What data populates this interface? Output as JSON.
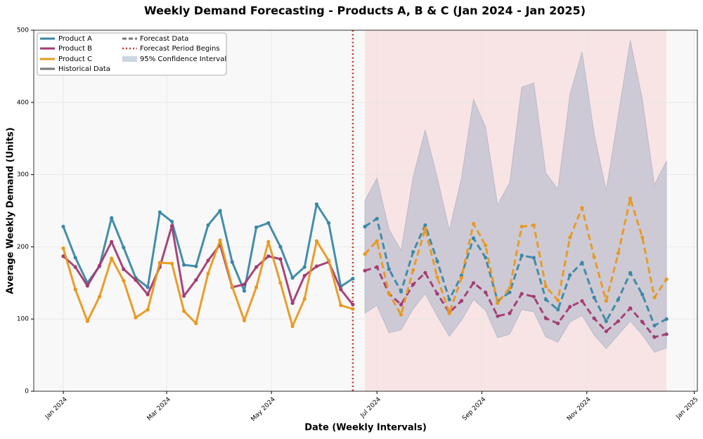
{
  "chart_data": {
    "type": "line",
    "title": "Weekly Demand Forecasting - Products A, B & C (Jan 2024 - Jan 2025)",
    "xlabel": "Date (Weekly Intervals)",
    "ylabel": "Average Weekly Demand (Units)",
    "x": [
      0,
      1,
      2,
      3,
      4,
      5,
      6,
      7,
      8,
      9,
      10,
      11,
      12,
      13,
      14,
      15,
      16,
      17,
      18,
      19,
      20,
      21,
      22,
      23,
      24,
      25,
      26,
      27,
      28,
      29,
      30,
      31,
      32,
      33,
      34,
      35,
      36,
      37,
      38,
      39,
      40,
      41,
      42,
      43,
      44,
      45,
      46,
      47,
      48,
      49,
      50
    ],
    "series": [
      {
        "name": "Product A",
        "color": "#3a87a5",
        "values": [
          228,
          185,
          150,
          173,
          240,
          199,
          157,
          144,
          248,
          235,
          175,
          173,
          230,
          250,
          179,
          139,
          227,
          233,
          200,
          157,
          172,
          259,
          233,
          145,
          156,
          228,
          239,
          169,
          138,
          193,
          230,
          180,
          127,
          160,
          212,
          185,
          125,
          137,
          188,
          185,
          127,
          113,
          161,
          178,
          130,
          97,
          127,
          164,
          134,
          91,
          100
        ]
      },
      {
        "name": "Product B",
        "color": "#a23b72",
        "values": [
          187,
          172,
          146,
          174,
          207,
          169,
          154,
          134,
          172,
          229,
          132,
          154,
          181,
          203,
          144,
          148,
          172,
          187,
          183,
          122,
          160,
          173,
          179,
          141,
          120,
          167,
          172,
          135,
          120,
          148,
          164,
          135,
          109,
          125,
          150,
          137,
          104,
          108,
          135,
          131,
          101,
          94,
          117,
          125,
          101,
          83,
          97,
          115,
          96,
          75,
          79
        ]
      },
      {
        "name": "Product C",
        "color": "#e8981d",
        "values": [
          198,
          141,
          97,
          131,
          184,
          153,
          102,
          113,
          178,
          177,
          111,
          94,
          163,
          209,
          145,
          98,
          144,
          207,
          150,
          90,
          128,
          208,
          181,
          119,
          114,
          190,
          208,
          135,
          106,
          168,
          225,
          158,
          108,
          157,
          232,
          202,
          122,
          143,
          228,
          230,
          145,
          126,
          213,
          254,
          186,
          125,
          191,
          267,
          213,
          130,
          155
        ]
      }
    ],
    "confidence_interval": {
      "name": "95% Confidence Interval",
      "color": "#8fa3bd",
      "lower": [
        108,
        119,
        81,
        85,
        114,
        135,
        104,
        76,
        98,
        127,
        112,
        74,
        79,
        113,
        110,
        75,
        68,
        96,
        105,
        78,
        59,
        78,
        97,
        78,
        54,
        60
      ],
      "upper": [
        264,
        295,
        224,
        195,
        297,
        362,
        296,
        223,
        295,
        404,
        366,
        258,
        289,
        421,
        427,
        302,
        280,
        411,
        470,
        357,
        278,
        382,
        486,
        404,
        286,
        319
      ]
    },
    "forecast_region": [
      25,
      50
    ],
    "forecast_start": {
      "x": 24,
      "label": "Forecast Period Begins",
      "color": "#c0392b"
    },
    "legend": {
      "loc": "upper left",
      "historical": "Historical Data",
      "forecast": "Forecast Data"
    },
    "xlim": [
      -2.45,
      52.56
    ],
    "xticks": [
      {
        "value": 0,
        "label": "Jan 2024"
      },
      {
        "value": 8.57,
        "label": "Mar 2024"
      },
      {
        "value": 17.25,
        "label": "May 2024"
      },
      {
        "value": 26.0,
        "label": "Jul 2024"
      },
      {
        "value": 34.7,
        "label": "Sep 2024"
      },
      {
        "value": 43.4,
        "label": "Nov 2024"
      },
      {
        "value": 52.3,
        "label": "Jan 2025"
      }
    ],
    "ylim": [
      0,
      500
    ],
    "yticks": [
      0,
      100,
      200,
      300,
      400,
      500
    ],
    "grid": true
  }
}
